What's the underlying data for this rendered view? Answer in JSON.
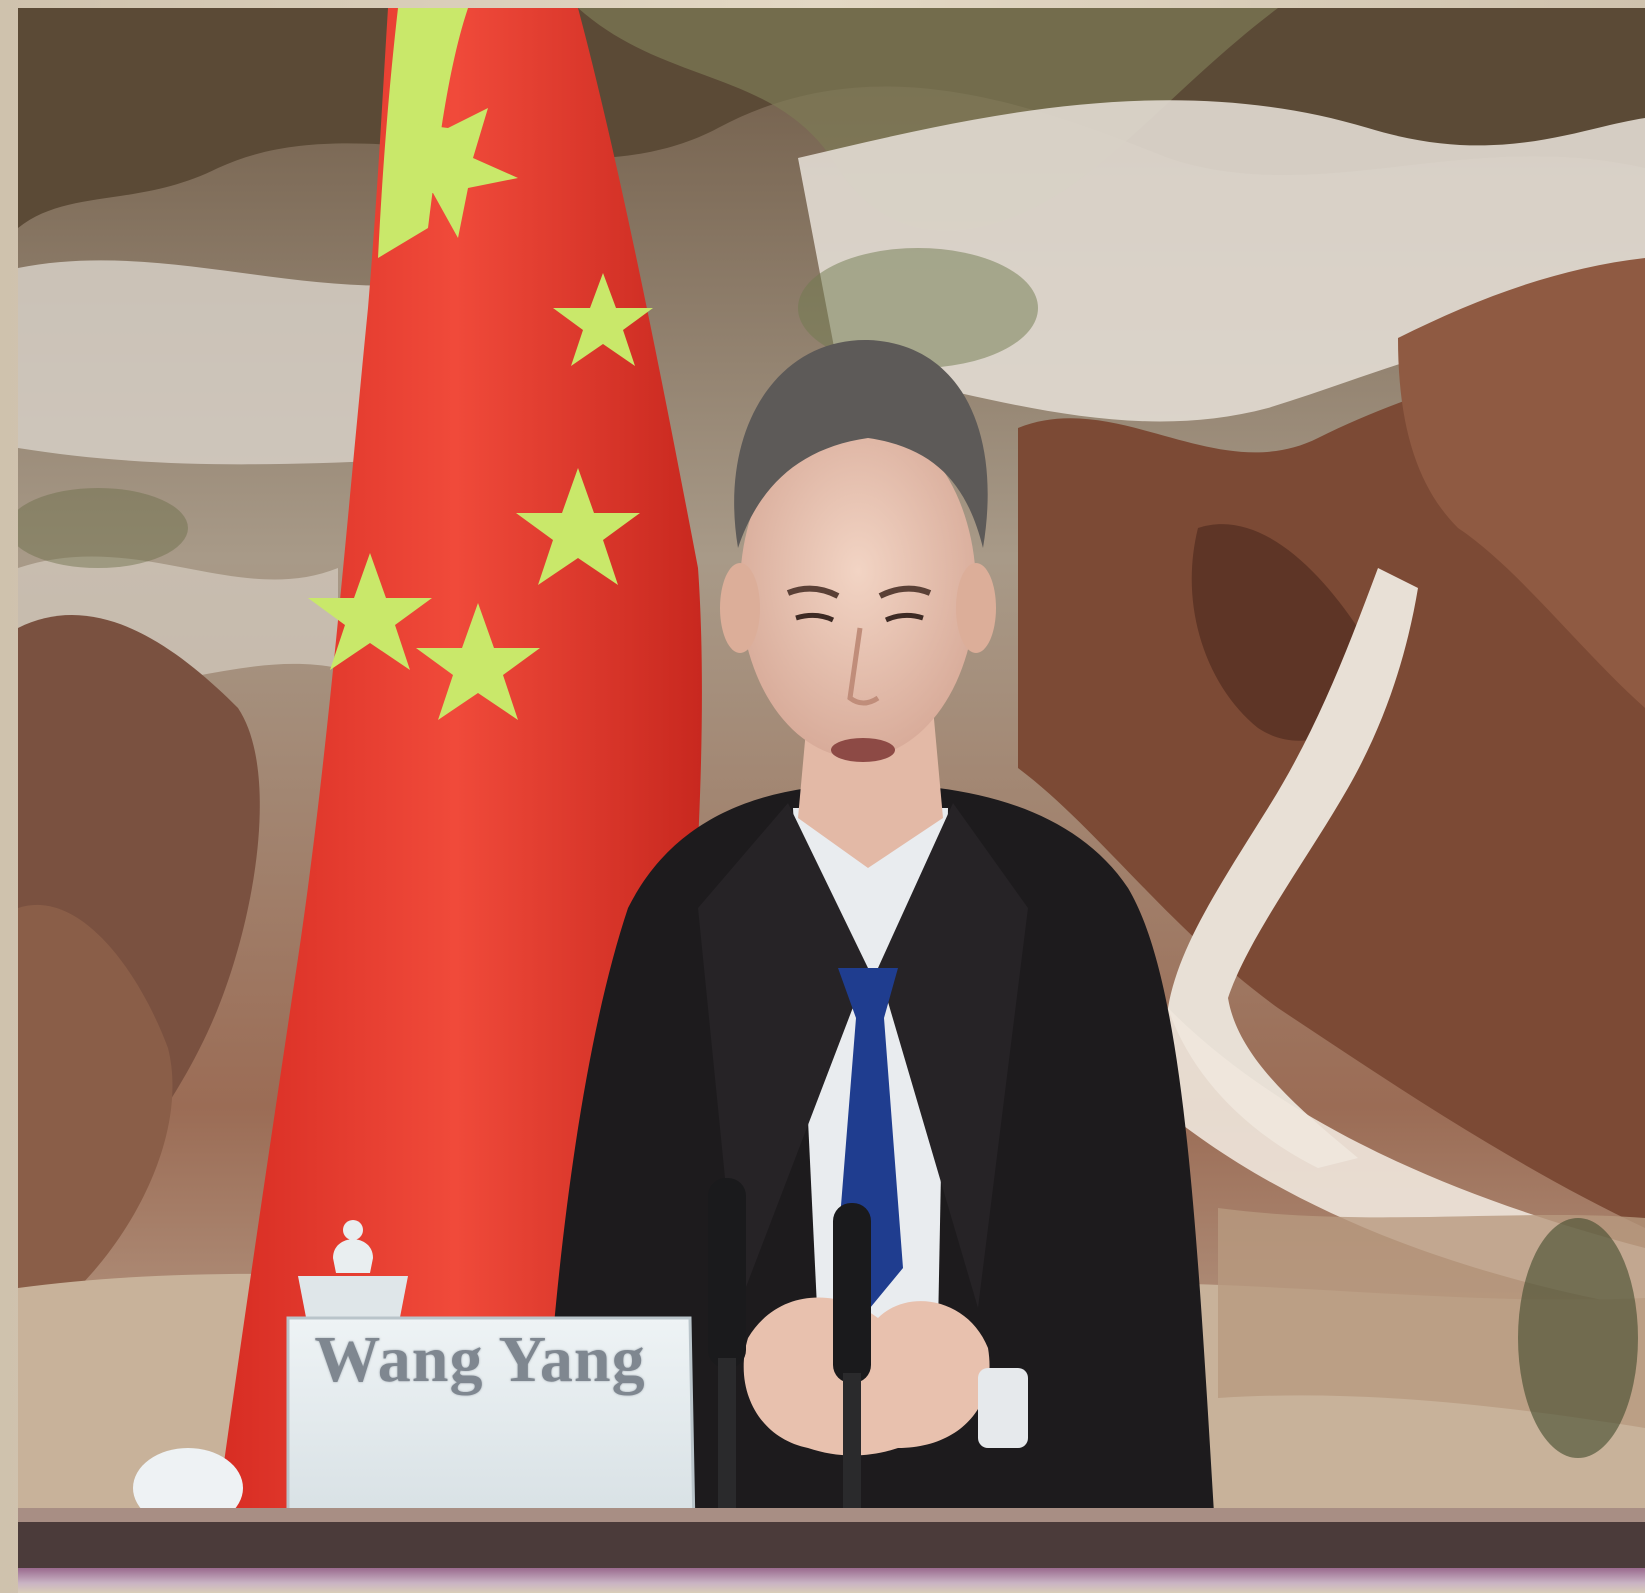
{
  "nameplate": {
    "name": "Wang Yang"
  },
  "colors": {
    "flag_red": "#e8352a",
    "flag_star": "#c9e86a",
    "suit": "#1d1b1d",
    "tie": "#1f3d8f",
    "shirt": "#e9ecef",
    "mountains": "#7a4a36",
    "mist": "#d9d3c9"
  },
  "icons": [
    "national-flag",
    "microphone",
    "nameplate",
    "teacup"
  ]
}
